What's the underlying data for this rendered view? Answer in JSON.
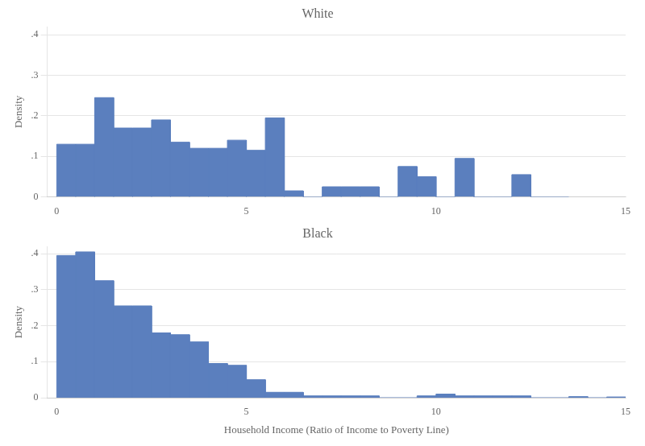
{
  "chart_data": [
    {
      "type": "bar",
      "title": "White",
      "ylabel": "Density",
      "x": [
        0.0,
        0.5,
        1.0,
        1.5,
        2.0,
        2.5,
        3.0,
        3.5,
        4.0,
        4.5,
        5.0,
        5.5,
        6.0,
        7.0,
        7.5,
        8.0,
        9.0,
        9.5,
        10.0,
        10.5,
        11.0,
        12.0,
        13.0
      ],
      "values": [
        0.13,
        0.13,
        0.245,
        0.17,
        0.17,
        0.19,
        0.135,
        0.12,
        0.12,
        0.14,
        0.115,
        0.195,
        0.015,
        0.025,
        0.025,
        0.025,
        0.075,
        0.05,
        0.0,
        0.095,
        0.0,
        0.055,
        0.0
      ],
      "color": "#5b7fbe",
      "xlim": [
        -0.25,
        15
      ],
      "xticks": [
        0,
        5,
        10,
        15
      ],
      "ylim": [
        0,
        0.42
      ],
      "yticks": [
        0,
        {
          "value": 0.1,
          "label": ".1"
        },
        {
          "value": 0.2,
          "label": ".2"
        },
        {
          "value": 0.3,
          "label": ".3"
        },
        {
          "value": 0.4,
          "label": ".4"
        }
      ],
      "grid": "y"
    },
    {
      "type": "bar",
      "title": "Black",
      "ylabel": "Density",
      "xlabel": "Household Income (Ratio of Income to Poverty Line)",
      "x": [
        0.0,
        0.5,
        1.0,
        1.5,
        2.0,
        2.5,
        3.0,
        3.5,
        4.0,
        4.5,
        5.0,
        5.5,
        6.0,
        6.5,
        7.0,
        7.5,
        8.0,
        9.5,
        10.0,
        10.5,
        11.0,
        11.5,
        12.0,
        13.5,
        14.5
      ],
      "values": [
        0.395,
        0.405,
        0.325,
        0.255,
        0.255,
        0.18,
        0.175,
        0.155,
        0.095,
        0.09,
        0.05,
        0.015,
        0.015,
        0.005,
        0.005,
        0.005,
        0.005,
        0.005,
        0.01,
        0.005,
        0.005,
        0.005,
        0.005,
        0.003,
        0.002
      ],
      "color": "#5b7fbe",
      "xlim": [
        -0.25,
        15
      ],
      "xticks": [
        0,
        5,
        10,
        15
      ],
      "ylim": [
        0,
        0.42
      ],
      "yticks": [
        0,
        {
          "value": 0.1,
          "label": ".1"
        },
        {
          "value": 0.2,
          "label": ".2"
        },
        {
          "value": 0.3,
          "label": ".3"
        },
        {
          "value": 0.4,
          "label": ".4"
        }
      ],
      "grid": "y"
    }
  ]
}
